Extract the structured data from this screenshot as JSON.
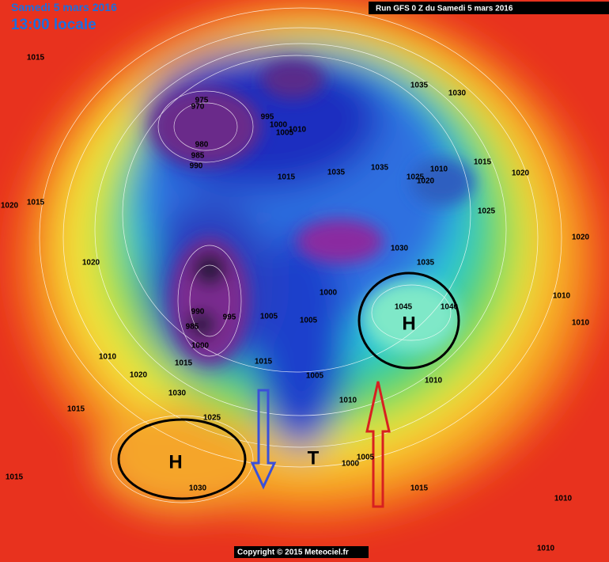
{
  "header": {
    "date": "Samedi 5 mars 2016",
    "time": "13:00 locale",
    "run": "Run GFS 0 Z du Samedi 5 mars 2016"
  },
  "footer": {
    "copyright": "Copyright © 2015 Meteociel.fr"
  },
  "annotations": {
    "high_east": "H",
    "high_west": "H",
    "trough": "T"
  },
  "isobar_labels": [
    "1015",
    "975",
    "970",
    "995",
    "1000",
    "1005",
    "1010",
    "980",
    "985",
    "990",
    "1015",
    "1035",
    "1035",
    "1025",
    "1020",
    "1010",
    "1015",
    "1020",
    "1035",
    "1030",
    "1025",
    "1020",
    "1030",
    "1035",
    "1020",
    "1015",
    "1020",
    "1000",
    "990",
    "985",
    "995",
    "1005",
    "1005",
    "1000",
    "1045",
    "1040",
    "1010",
    "1010",
    "1010",
    "1020",
    "1015",
    "1015",
    "1005",
    "1010",
    "1010",
    "1030",
    "1015",
    "1025",
    "1030",
    "1015",
    "1000",
    "1005",
    "1015",
    "1010",
    "1010"
  ]
}
